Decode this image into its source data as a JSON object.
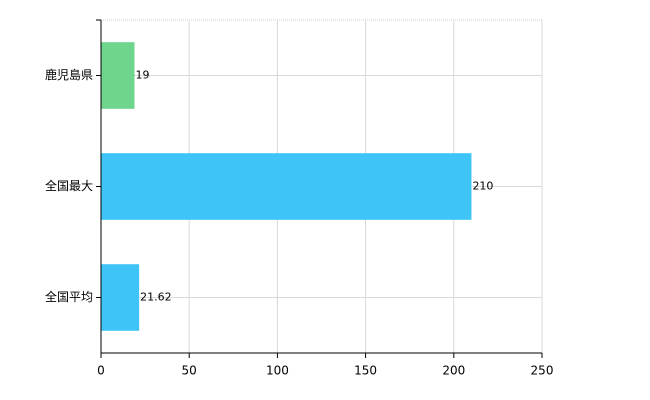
{
  "chart_data": {
    "type": "bar",
    "orientation": "horizontal",
    "categories": [
      "鹿児島県",
      "全国最大",
      "全国平均"
    ],
    "values": [
      19,
      210,
      21.62
    ],
    "colors": [
      "#6dd58c",
      "#3ec4f7",
      "#3ec4f7"
    ],
    "xlim": [
      0,
      250
    ],
    "xticks": [
      0,
      50,
      100,
      150,
      200,
      250
    ],
    "grid": true
  }
}
